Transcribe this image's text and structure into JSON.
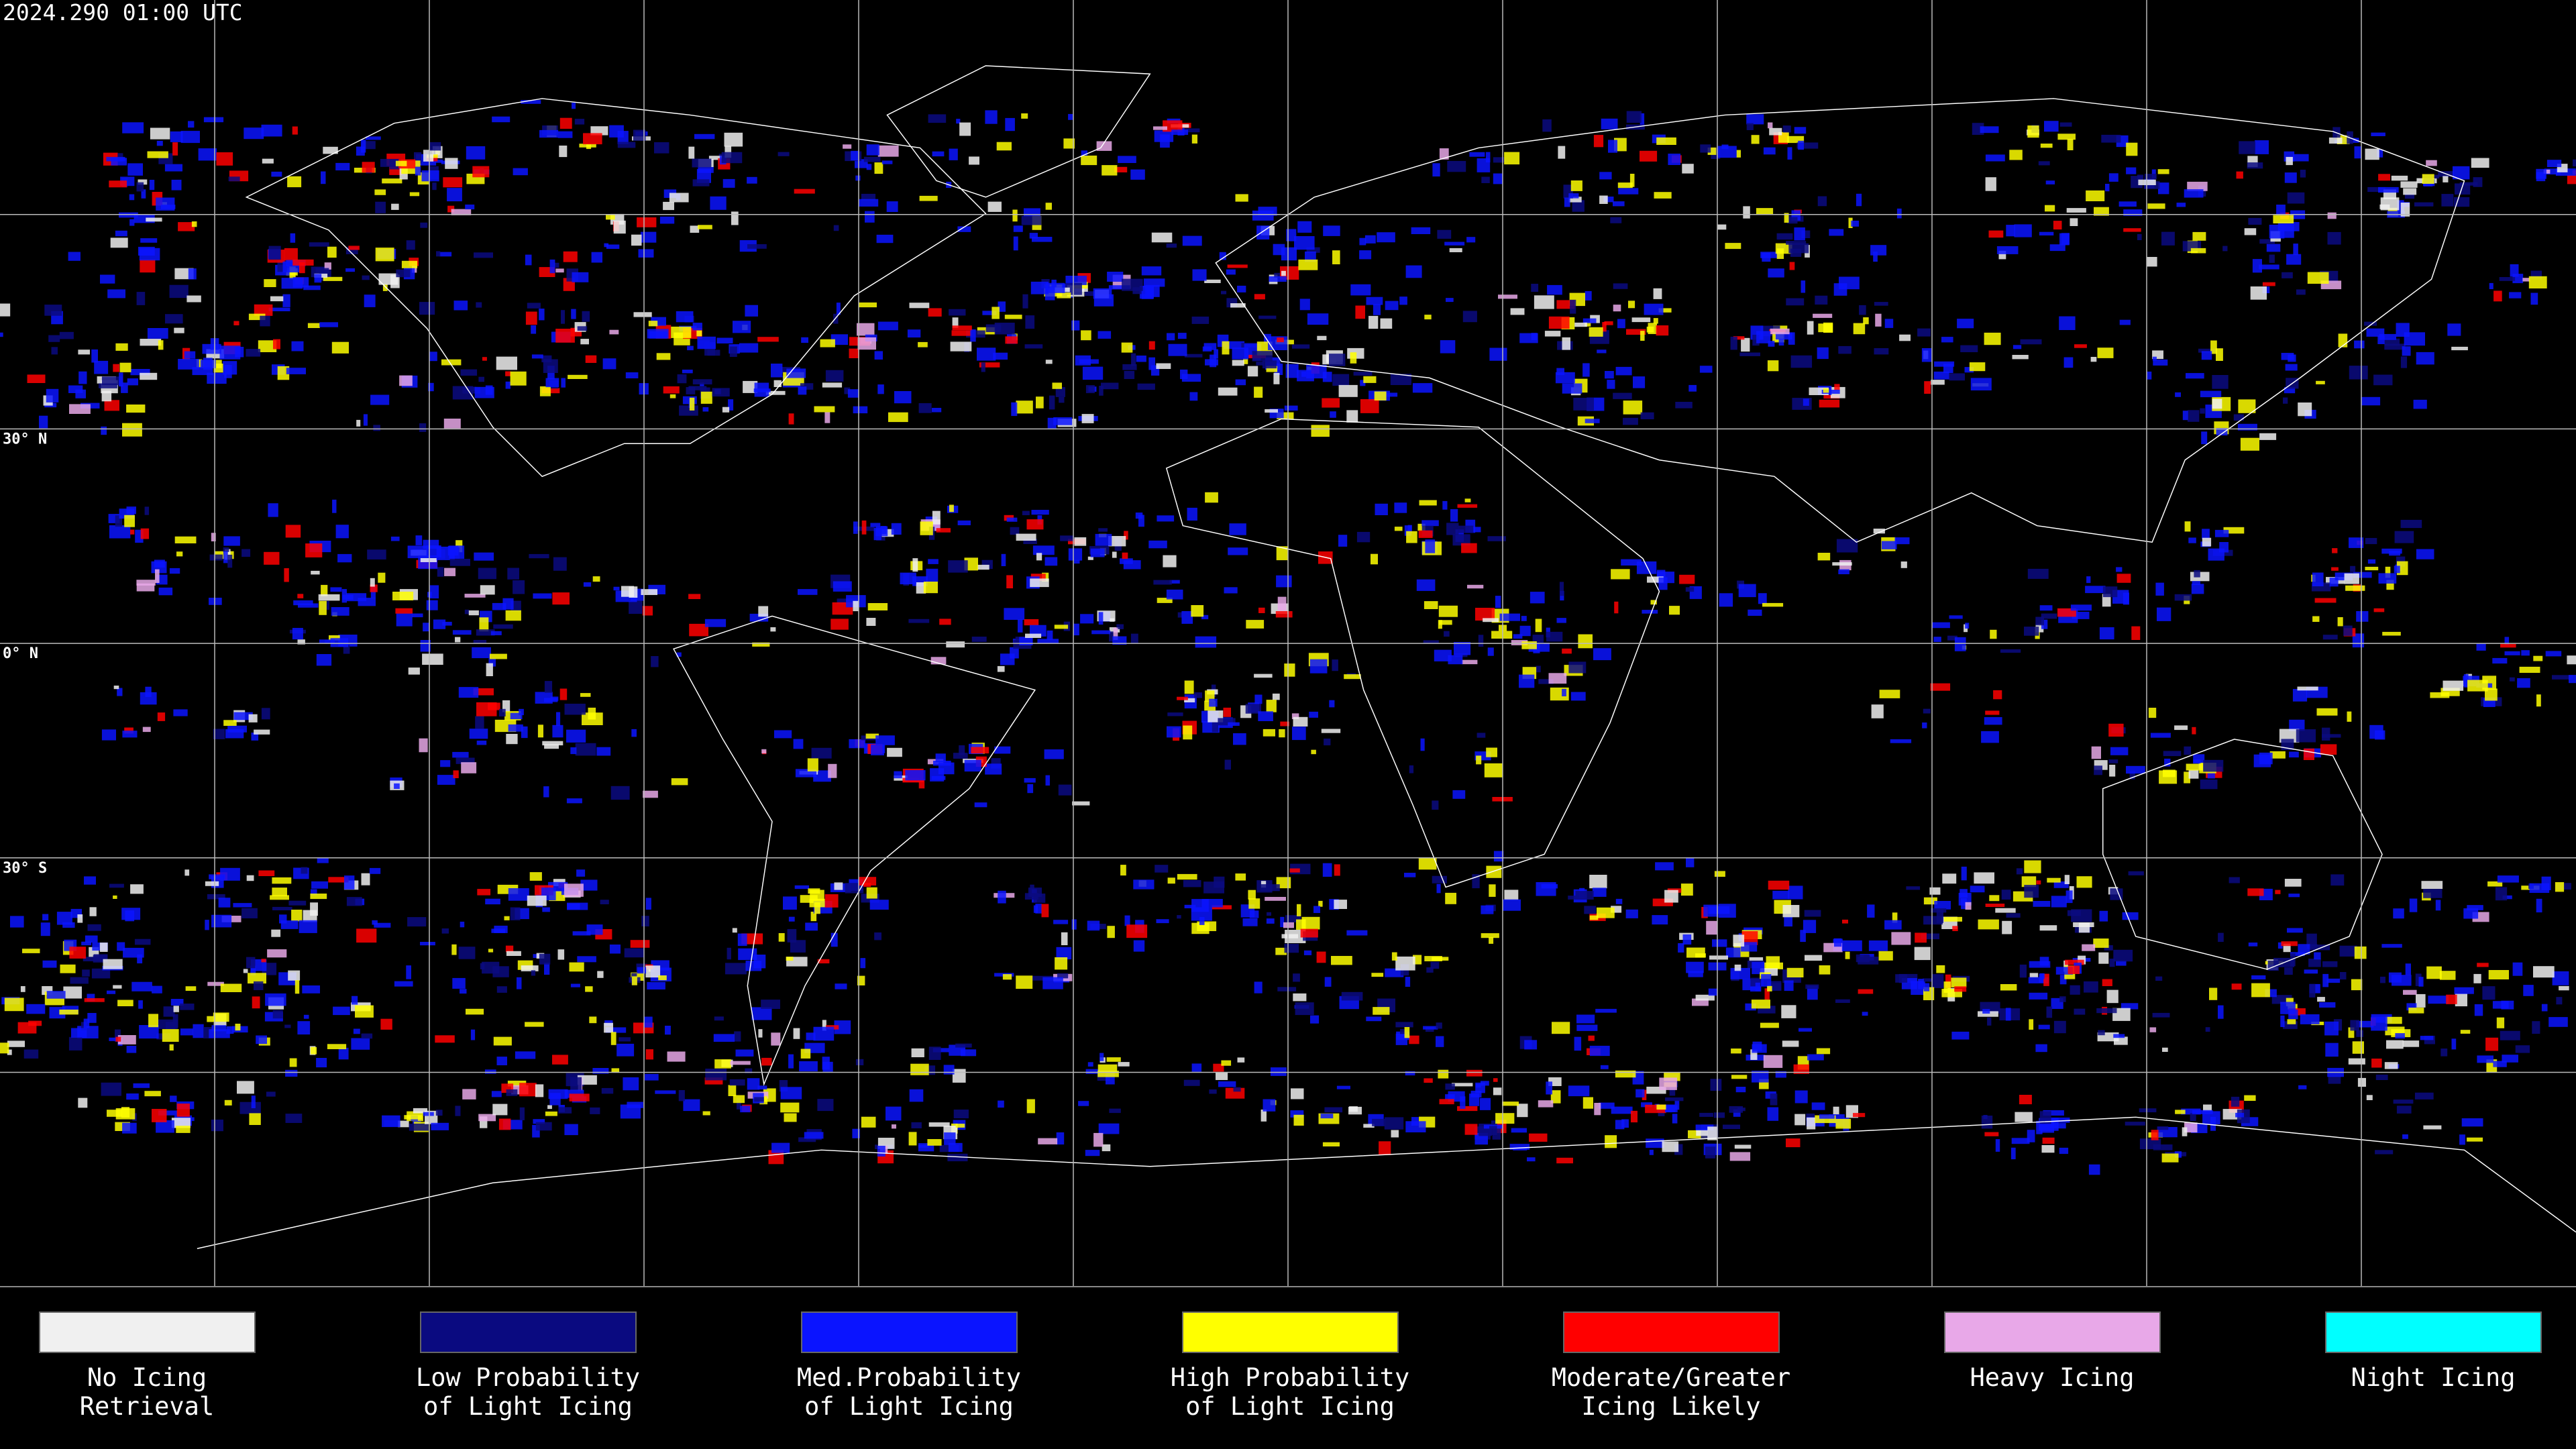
{
  "header": {
    "title": "2024.290 01:00 UTC"
  },
  "latitude_labels": [
    "30° N",
    "0° N",
    "30° S"
  ],
  "legend": [
    {
      "lines": [
        "No Icing",
        "Retrieval"
      ],
      "color": "#f0f0f0"
    },
    {
      "lines": [
        "Low Probability",
        "of Light Icing"
      ],
      "color": "#0a0a80"
    },
    {
      "lines": [
        "Med.Probability",
        "of Light Icing"
      ],
      "color": "#0a14ff"
    },
    {
      "lines": [
        "High Probability",
        "of Light Icing"
      ],
      "color": "#ffff00"
    },
    {
      "lines": [
        "Moderate/Greater",
        "Icing Likely"
      ],
      "color": "#ff0000"
    },
    {
      "lines": [
        "Heavy Icing"
      ],
      "color": "#e8a8e8"
    },
    {
      "lines": [
        "Night Icing"
      ],
      "color": "#00ffff"
    }
  ]
}
